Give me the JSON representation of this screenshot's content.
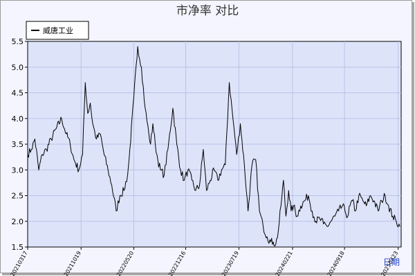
{
  "chart_data": {
    "type": "line",
    "title": "市净率  对比",
    "xlabel": "日期",
    "ylabel": "",
    "ylim": [
      1.5,
      5.5
    ],
    "yticks": [
      "1.5",
      "2.0",
      "2.5",
      "3.0",
      "3.5",
      "4.0",
      "4.5",
      "5.0",
      "5.5"
    ],
    "xticks": [
      "20210317",
      "20211019",
      "20220520",
      "20221216",
      "20230719",
      "20240221",
      "20240918",
      "20250423"
    ],
    "grid": true,
    "legend_position": "top-left",
    "colors": {
      "plot_bg": "#dde3f9",
      "grid": "#b9c3e6",
      "line": "#000000",
      "axis_label": "#1f3fc8"
    },
    "series": [
      {
        "name": "威唐工业",
        "color": "#000000",
        "x": [
          "2021-03-17",
          "2021-04-01",
          "2021-04-15",
          "2021-05-01",
          "2021-05-15",
          "2021-06-01",
          "2021-06-20",
          "2021-07-10",
          "2021-08-01",
          "2021-08-20",
          "2021-09-05",
          "2021-09-20",
          "2021-10-10",
          "2021-10-25",
          "2021-11-05",
          "2021-11-15",
          "2021-11-25",
          "2021-12-05",
          "2021-12-20",
          "2022-01-05",
          "2022-01-20",
          "2022-02-05",
          "2022-02-20",
          "2022-03-10",
          "2022-03-25",
          "2022-04-10",
          "2022-04-25",
          "2022-05-01",
          "2022-05-20",
          "2022-06-05",
          "2022-06-20",
          "2022-07-05",
          "2022-07-20",
          "2022-07-27",
          "2022-08-05",
          "2022-08-15",
          "2022-08-25",
          "2022-09-05",
          "2022-09-20",
          "2022-10-05",
          "2022-10-25",
          "2022-11-10",
          "2022-11-25",
          "2022-12-10",
          "2022-12-25",
          "2023-01-10",
          "2023-01-25",
          "2023-02-10",
          "2023-02-25",
          "2023-03-10",
          "2023-03-25",
          "2023-04-10",
          "2023-04-25",
          "2023-05-10",
          "2023-05-25",
          "2023-06-10",
          "2023-06-25",
          "2023-07-10",
          "2023-07-25",
          "2023-08-10",
          "2023-08-25",
          "2023-09-10",
          "2023-09-25",
          "2023-10-10",
          "2023-10-25",
          "2023-11-10",
          "2023-11-25",
          "2023-12-05",
          "2023-12-15",
          "2023-12-25",
          "2024-01-05",
          "2024-01-15",
          "2024-01-25",
          "2024-02-05",
          "2024-02-15",
          "2024-02-25",
          "2024-03-10",
          "2024-03-25",
          "2024-04-10",
          "2024-04-25",
          "2024-05-10",
          "2024-05-25",
          "2024-06-10",
          "2024-06-25",
          "2024-07-10",
          "2024-07-25",
          "2024-08-10",
          "2024-08-25",
          "2024-09-10",
          "2024-09-20",
          "2024-10-01",
          "2024-10-10",
          "2024-10-20",
          "2024-11-01",
          "2024-11-15",
          "2024-12-01",
          "2024-12-15",
          "2025-01-01",
          "2025-01-15",
          "2025-02-01",
          "2025-02-15",
          "2025-03-01",
          "2025-03-15",
          "2025-04-01",
          "2025-04-15",
          "2025-04-30"
        ],
        "values": [
          3.3,
          3.4,
          3.6,
          3.0,
          3.3,
          3.4,
          3.6,
          3.8,
          4.0,
          3.7,
          3.5,
          3.2,
          3.0,
          3.3,
          4.7,
          4.1,
          4.3,
          3.9,
          3.6,
          3.7,
          3.3,
          3.0,
          2.7,
          2.2,
          2.5,
          2.6,
          2.9,
          3.2,
          4.4,
          5.4,
          5.0,
          4.2,
          3.7,
          3.5,
          3.9,
          3.5,
          3.2,
          3.0,
          2.9,
          3.4,
          4.2,
          3.5,
          3.0,
          2.8,
          3.0,
          2.8,
          2.6,
          2.7,
          3.4,
          2.6,
          2.8,
          3.0,
          2.8,
          3.0,
          3.1,
          4.7,
          4.0,
          3.3,
          3.9,
          3.1,
          2.2,
          3.1,
          3.2,
          2.2,
          1.9,
          1.7,
          1.6,
          1.6,
          1.55,
          1.8,
          2.3,
          2.8,
          2.1,
          2.6,
          2.2,
          2.3,
          2.1,
          2.3,
          2.4,
          2.5,
          2.2,
          2.0,
          2.05,
          1.95,
          1.9,
          2.0,
          2.1,
          2.2,
          2.3,
          2.2,
          2.1,
          2.3,
          2.4,
          2.2,
          2.5,
          2.4,
          2.3,
          2.5,
          2.4,
          2.2,
          2.4,
          2.5,
          2.3,
          2.1,
          2.0,
          1.9
        ]
      }
    ]
  }
}
